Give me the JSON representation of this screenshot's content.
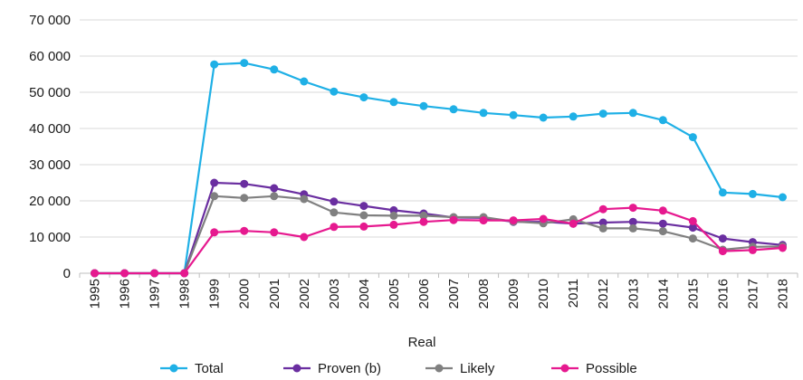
{
  "chart_data": {
    "type": "line",
    "title": "",
    "xlabel": "Real",
    "ylabel": "",
    "ylim": [
      0,
      70000
    ],
    "yticks": [
      0,
      10000,
      20000,
      30000,
      40000,
      50000,
      60000,
      70000
    ],
    "ytick_labels": [
      "0",
      "10 000",
      "20 000",
      "30 000",
      "40 000",
      "50 000",
      "60 000",
      "70 000"
    ],
    "grid": "horizontal",
    "legend_position": "bottom",
    "x": [
      "1995",
      "1996",
      "1997",
      "1998",
      "1999",
      "2000",
      "2001",
      "2002",
      "2003",
      "2004",
      "2005",
      "2006",
      "2007",
      "2008",
      "2009",
      "2010",
      "2011",
      "2012",
      "2013",
      "2014",
      "2015",
      "2016",
      "2017",
      "2018"
    ],
    "series": [
      {
        "name": "Total",
        "color": "#1fb0e6",
        "values": [
          0,
          0,
          0,
          0,
          57700,
          58100,
          56300,
          53000,
          50200,
          48600,
          47300,
          46200,
          45300,
          44300,
          43700,
          43000,
          43300,
          44100,
          44300,
          42300,
          37600,
          22300,
          21900,
          21000
        ]
      },
      {
        "name": "Proven (b)",
        "color": "#6a2ea0",
        "values": [
          0,
          0,
          0,
          0,
          25000,
          24700,
          23500,
          21800,
          19800,
          18600,
          17400,
          16500,
          15400,
          15300,
          14200,
          14200,
          13700,
          14000,
          14200,
          13700,
          12600,
          9600,
          8600,
          7800
        ]
      },
      {
        "name": "Likely",
        "color": "#808080",
        "values": [
          0,
          0,
          0,
          0,
          21300,
          20800,
          21300,
          20500,
          16800,
          16000,
          15900,
          15900,
          15500,
          15500,
          14300,
          13800,
          14900,
          12400,
          12400,
          11600,
          9600,
          6500,
          7300,
          7400
        ]
      },
      {
        "name": "Possible",
        "color": "#e6198f",
        "values": [
          0,
          0,
          0,
          0,
          11300,
          11700,
          11300,
          10000,
          12800,
          12900,
          13400,
          14200,
          14700,
          14600,
          14600,
          15000,
          13700,
          17700,
          18100,
          17300,
          14400,
          6100,
          6400,
          7000
        ]
      }
    ]
  }
}
